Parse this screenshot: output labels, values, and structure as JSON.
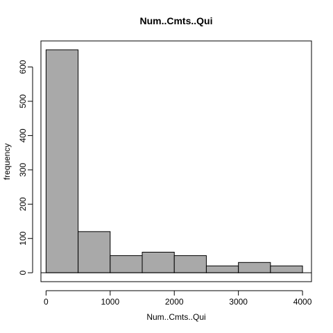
{
  "chart_data": {
    "type": "bar",
    "subtype": "histogram",
    "title": "Num..Cmts..Qui",
    "xlabel": "Num..Cmts..Qui",
    "ylabel": "frequency",
    "bins": [
      {
        "start": 0,
        "end": 500,
        "count": 650
      },
      {
        "start": 500,
        "end": 1000,
        "count": 120
      },
      {
        "start": 1000,
        "end": 1500,
        "count": 50
      },
      {
        "start": 1500,
        "end": 2000,
        "count": 60
      },
      {
        "start": 2000,
        "end": 2500,
        "count": 50
      },
      {
        "start": 2500,
        "end": 3000,
        "count": 20
      },
      {
        "start": 3000,
        "end": 3500,
        "count": 30
      },
      {
        "start": 3500,
        "end": 4000,
        "count": 20
      }
    ],
    "x_ticks": [
      0,
      1000,
      2000,
      3000,
      4000
    ],
    "x_tick_labels": [
      "0",
      "1000",
      "2000",
      "3000",
      "4000"
    ],
    "y_ticks": [
      0,
      100,
      200,
      300,
      400,
      500,
      600
    ],
    "y_tick_labels": [
      "0",
      "100",
      "200",
      "300",
      "400",
      "500",
      "600"
    ],
    "xlim": [
      -80,
      4140
    ],
    "ylim": [
      -26,
      676
    ],
    "zero_line": true,
    "grid": false,
    "bar_color": "#a9a9a9",
    "edge_color": "#000000"
  }
}
